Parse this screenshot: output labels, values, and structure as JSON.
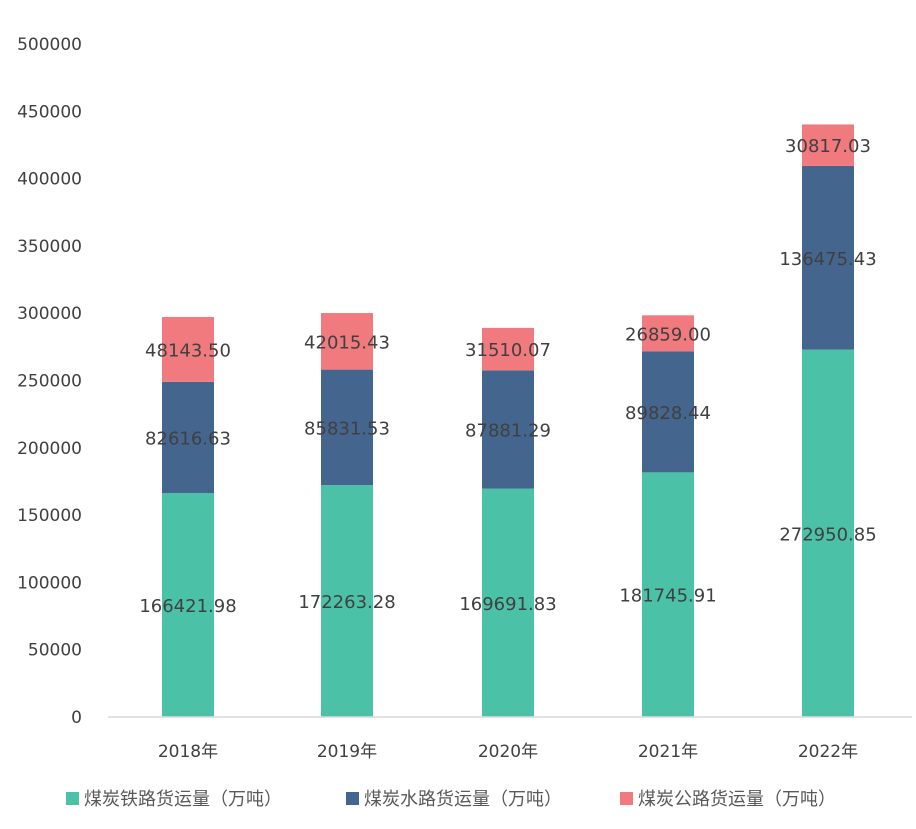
{
  "chart_data": {
    "type": "bar",
    "stacked": true,
    "categories": [
      "2018年",
      "2019年",
      "2020年",
      "2021年",
      "2022年"
    ],
    "series": [
      {
        "name": "煤炭铁路货运量（万吨）",
        "color": "#4BC1A8",
        "values": [
          166421.98,
          172263.28,
          169691.83,
          181745.91,
          272950.85
        ],
        "labels": [
          "166421.98",
          "172263.28",
          "169691.83",
          "181745.91",
          "272950.85"
        ]
      },
      {
        "name": "煤炭水路货运量（万吨）",
        "color": "#44658E",
        "values": [
          82616.63,
          85831.53,
          87881.29,
          89828.44,
          136475.43
        ],
        "labels": [
          "82616.63",
          "85831.53",
          "87881.29",
          "89828.44",
          "136475.43"
        ]
      },
      {
        "name": "煤炭公路货运量（万吨）",
        "color": "#F07A7E",
        "values": [
          48143.5,
          42015.43,
          31510.07,
          26859.0,
          30817.03
        ],
        "labels": [
          "48143.50",
          "42015.43",
          "31510.07",
          "26859.00",
          "30817.03"
        ]
      }
    ],
    "ylim": [
      0,
      500000
    ],
    "yticks": [
      "0",
      "50000",
      "100000",
      "150000",
      "200000",
      "250000",
      "300000",
      "350000",
      "400000",
      "450000",
      "500000"
    ],
    "grid": false,
    "legend_position": "bottom"
  }
}
